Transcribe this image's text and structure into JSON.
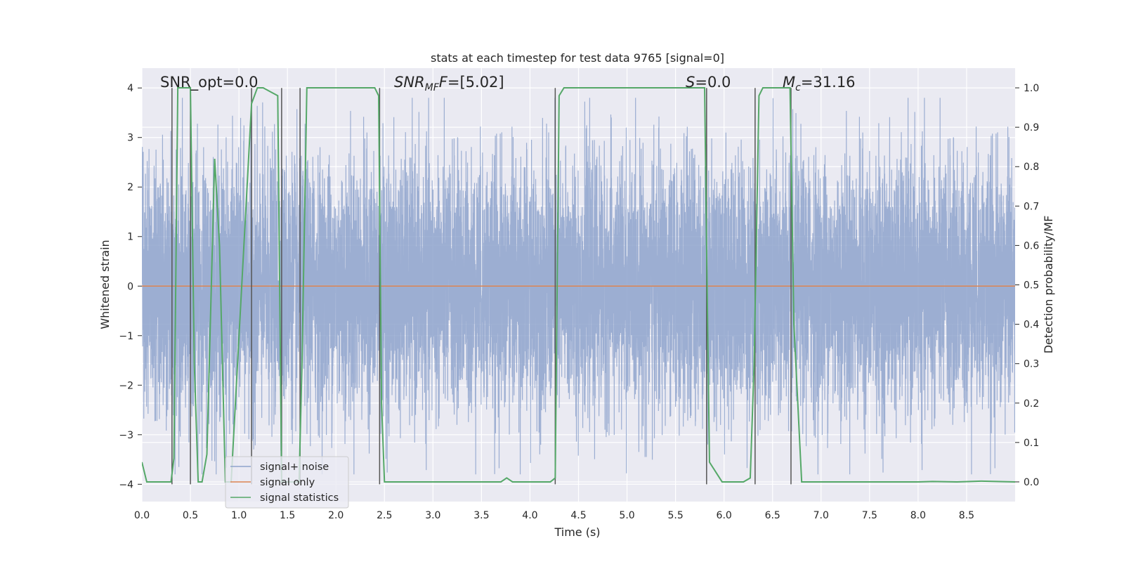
{
  "chart_data": {
    "type": "line",
    "title": "stats at each timestep for test data 9765 [signal=0]",
    "xlabel": "Time (s)",
    "ylabel": "Whitened strain",
    "y2label": "Detection probability/MF",
    "xlim": [
      0.0,
      9.0
    ],
    "ylim": [
      -4.35,
      4.4
    ],
    "y2lim": [
      -0.05,
      1.05
    ],
    "x_ticks": [
      0.0,
      0.5,
      1.0,
      1.5,
      2.0,
      2.5,
      3.0,
      3.5,
      4.0,
      4.5,
      5.0,
      5.5,
      6.0,
      6.5,
      7.0,
      7.5,
      8.0,
      8.5
    ],
    "x_tick_labels": [
      "0.0",
      "0.5",
      "1.0",
      "1.5",
      "2.0",
      "2.5",
      "3.0",
      "3.5",
      "4.0",
      "4.5",
      "5.0",
      "5.5",
      "6.0",
      "6.5",
      "7.0",
      "7.5",
      "8.0",
      "8.5"
    ],
    "y_ticks": [
      -4,
      -3,
      -2,
      -1,
      0,
      1,
      2,
      3,
      4
    ],
    "y_tick_labels": [
      "−4",
      "−3",
      "−2",
      "−1",
      "0",
      "1",
      "2",
      "3",
      "4"
    ],
    "y2_ticks": [
      0.0,
      0.1,
      0.2,
      0.3,
      0.4,
      0.5,
      0.6,
      0.7,
      0.8,
      0.9,
      1.0
    ],
    "y2_tick_labels": [
      "0.0",
      "0.1",
      "0.2",
      "0.3",
      "0.4",
      "0.5",
      "0.6",
      "0.7",
      "0.8",
      "0.9",
      "1.0"
    ],
    "grid": true,
    "legend_position": "lower-left",
    "annotations": {
      "snr_opt": "SNR_opt=0.0",
      "snr_mf_base": "SNR",
      "snr_mf_sub": "MF",
      "snr_mf_value": "=[5.02]",
      "s_base": "S",
      "s_value": "=0.0",
      "mc_base": "M",
      "mc_sub": "c",
      "mc_value": "=31.16"
    },
    "series": [
      {
        "name": "signal+ noise",
        "color": "#8ea3cc",
        "kind": "noise",
        "sample_rate": 1024,
        "std": 1.0,
        "y_range": [
          -3.8,
          3.8
        ]
      },
      {
        "name": "signal only",
        "color": "#dd8452",
        "kind": "line",
        "x": [
          0.0,
          9.0
        ],
        "y": [
          0.0,
          0.0
        ]
      },
      {
        "name": "signal statistics",
        "color": "#55a868",
        "kind": "line",
        "axis": "right",
        "x": [
          0.0,
          0.05,
          0.1,
          0.3,
          0.33,
          0.37,
          0.41,
          0.45,
          0.5,
          0.54,
          0.58,
          0.62,
          0.67,
          0.75,
          0.8,
          0.86,
          0.92,
          1.13,
          1.19,
          1.25,
          1.4,
          1.44,
          1.5,
          1.62,
          1.65,
          1.7,
          2.4,
          2.44,
          2.47,
          2.5,
          2.55,
          3.7,
          3.76,
          3.82,
          4.21,
          4.26,
          4.3,
          4.35,
          4.4,
          5.8,
          5.82,
          5.85,
          5.98,
          6.2,
          6.27,
          6.31,
          6.36,
          6.4,
          6.46,
          6.68,
          6.72,
          6.8,
          8.0,
          8.15,
          8.4,
          8.65,
          9.0
        ],
        "y": [
          0.05,
          0.0,
          0.0,
          0.0,
          0.06,
          1.0,
          1.0,
          1.0,
          1.0,
          0.3,
          0.0,
          0.0,
          0.07,
          0.82,
          0.6,
          0.0,
          0.0,
          0.96,
          1.0,
          1.0,
          0.98,
          0.0,
          0.0,
          0.0,
          0.3,
          1.0,
          1.0,
          0.98,
          0.2,
          0.0,
          0.0,
          0.0,
          0.01,
          0.0,
          0.0,
          0.01,
          0.98,
          1.0,
          1.0,
          1.0,
          0.6,
          0.05,
          0.0,
          0.0,
          0.01,
          0.3,
          0.98,
          1.0,
          1.0,
          1.0,
          0.4,
          0.0,
          0.0,
          0.001,
          0.0,
          0.002,
          0.0
        ]
      },
      {
        "name": "",
        "color": "#555555",
        "kind": "vlines",
        "x": [
          0.31,
          0.5,
          1.13,
          1.44,
          1.63,
          2.45,
          4.26,
          5.82,
          6.32,
          6.69
        ],
        "y_range": [
          -4.0,
          4.0
        ]
      }
    ]
  }
}
